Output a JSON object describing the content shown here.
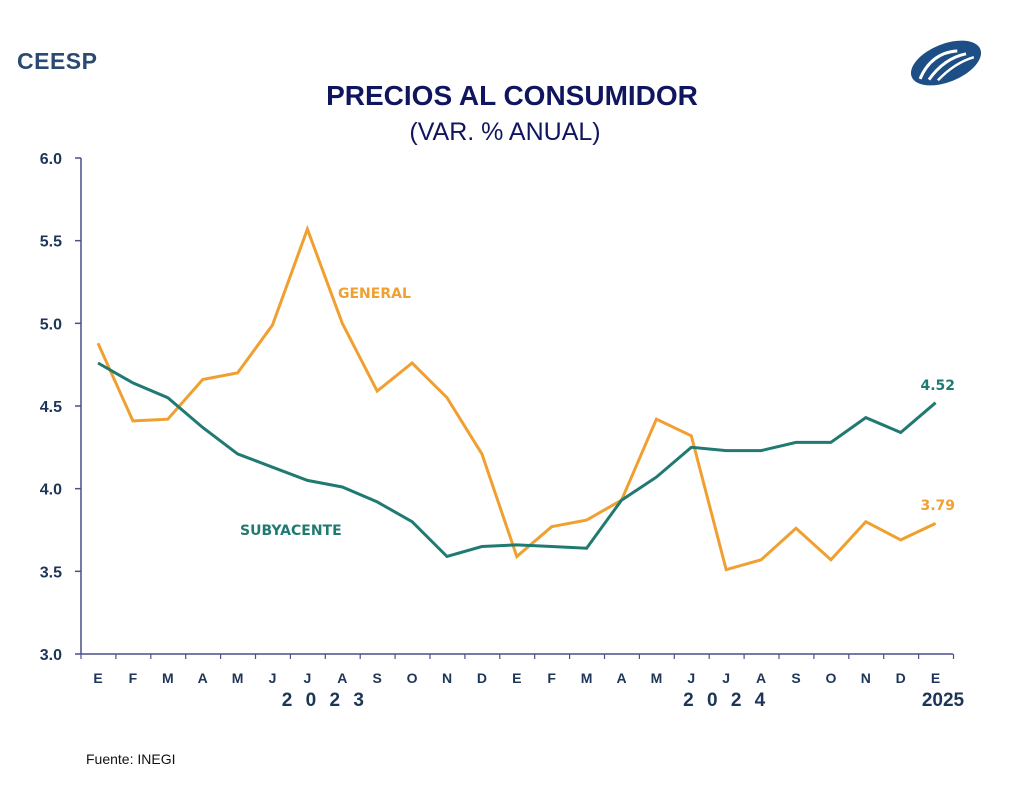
{
  "header": {
    "brand": "CEESP",
    "logo_icon": "ceesp-logo-icon",
    "title": "PRECIOS AL CONSUMIDOR",
    "subtitle": "(VAR. % ANUAL)"
  },
  "footer": {
    "source": "Fuente: INEGI"
  },
  "colors": {
    "general": "#f0a030",
    "subyacente": "#217a72",
    "axis": "#4a4f8a",
    "text": "#1d3557",
    "title": "#101560"
  },
  "chart_data": {
    "type": "line",
    "title": "PRECIOS AL CONSUMIDOR",
    "subtitle": "(VAR. % ANUAL)",
    "xlabel": "",
    "ylabel": "",
    "ylim": [
      3.0,
      6.0
    ],
    "yticks": [
      "6.0",
      "5.5",
      "5.0",
      "4.5",
      "4.0",
      "3.5",
      "3.0"
    ],
    "ytick_values": [
      6.0,
      5.5,
      5.0,
      4.5,
      4.0,
      3.5,
      3.0
    ],
    "categories": [
      "E",
      "F",
      "M",
      "A",
      "M",
      "J",
      "J",
      "A",
      "S",
      "O",
      "N",
      "D",
      "E",
      "F",
      "M",
      "A",
      "M",
      "J",
      "J",
      "A",
      "S",
      "O",
      "N",
      "D",
      "E"
    ],
    "year_labels": [
      {
        "label": "2 0 2 3",
        "center_index": 6.5
      },
      {
        "label": "2 0 2 4",
        "center_index": 18
      },
      {
        "label": "2025",
        "center_index": 24.5
      }
    ],
    "grid": false,
    "series": [
      {
        "name": "GENERAL",
        "color": "#f0a030",
        "end_label": "3.79",
        "values": [
          4.88,
          4.41,
          4.42,
          4.66,
          4.7,
          4.99,
          5.57,
          5.0,
          4.59,
          4.76,
          4.55,
          4.21,
          3.59,
          3.77,
          3.81,
          3.93,
          4.42,
          4.32,
          3.51,
          3.57,
          3.76,
          3.57,
          3.8,
          3.69,
          3.79
        ]
      },
      {
        "name": "SUBYACENTE",
        "color": "#217a72",
        "end_label": "4.52",
        "values": [
          4.76,
          4.64,
          4.55,
          4.37,
          4.21,
          4.13,
          4.05,
          4.01,
          3.92,
          3.8,
          3.59,
          3.65,
          3.66,
          3.65,
          3.64,
          3.93,
          4.07,
          4.25,
          4.23,
          4.23,
          4.28,
          4.28,
          4.43,
          4.34,
          4.52
        ]
      }
    ]
  }
}
